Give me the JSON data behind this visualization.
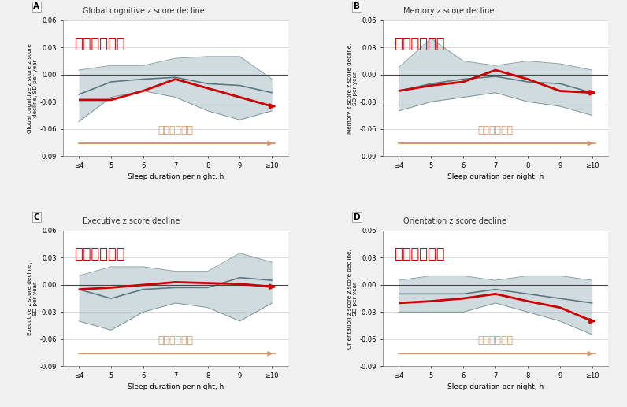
{
  "x_labels": [
    "≤4",
    "5",
    "6",
    "7",
    "8",
    "9",
    "≥10"
  ],
  "x_vals": [
    0,
    1,
    2,
    3,
    4,
    5,
    6
  ],
  "panels": [
    {
      "label": "A",
      "title": "Global cognitive z score decline",
      "ylabel": "Global cognitive z score z score\ndecline, SD per year",
      "chinese_label": "认知功能评分",
      "line_y": [
        -0.022,
        -0.008,
        -0.005,
        -0.003,
        -0.01,
        -0.012,
        -0.02
      ],
      "ci_upper": [
        0.005,
        0.01,
        0.01,
        0.018,
        0.02,
        0.02,
        -0.005
      ],
      "ci_lower": [
        -0.052,
        -0.025,
        -0.018,
        -0.025,
        -0.04,
        -0.05,
        -0.04
      ],
      "red_y": [
        -0.028,
        -0.028,
        -0.018,
        -0.005,
        -0.015,
        -0.025,
        -0.035
      ]
    },
    {
      "label": "B",
      "title": "Memory z score decline",
      "ylabel": "Memory z score z score decline,\nSD per year",
      "chinese_label": "记忆功能评分",
      "line_y": [
        -0.018,
        -0.01,
        -0.005,
        -0.002,
        -0.008,
        -0.01,
        -0.02
      ],
      "ci_upper": [
        0.008,
        0.04,
        0.015,
        0.01,
        0.015,
        0.012,
        0.005
      ],
      "ci_lower": [
        -0.04,
        -0.03,
        -0.025,
        -0.02,
        -0.03,
        -0.035,
        -0.045
      ],
      "red_y": [
        -0.018,
        -0.012,
        -0.008,
        0.005,
        -0.005,
        -0.018,
        -0.02
      ]
    },
    {
      "label": "C",
      "title": "Executive z score decline",
      "ylabel": "Executive z score decline,\nSD per year",
      "chinese_label": "执行功能评分",
      "line_y": [
        -0.005,
        -0.015,
        -0.005,
        -0.003,
        -0.003,
        0.008,
        0.005
      ],
      "ci_upper": [
        0.01,
        0.02,
        0.02,
        0.015,
        0.015,
        0.035,
        0.025
      ],
      "ci_lower": [
        -0.04,
        -0.05,
        -0.03,
        -0.02,
        -0.025,
        -0.04,
        -0.02
      ],
      "red_y": [
        -0.005,
        -0.003,
        0.0,
        0.003,
        0.002,
        0.001,
        -0.002
      ]
    },
    {
      "label": "D",
      "title": "Orientation z score decline",
      "ylabel": "Orientation z score z score decline,\nSD per year",
      "chinese_label": "定向功能评分",
      "line_y": [
        -0.01,
        -0.01,
        -0.01,
        -0.005,
        -0.01,
        -0.015,
        -0.02
      ],
      "ci_upper": [
        0.005,
        0.01,
        0.01,
        0.005,
        0.01,
        0.01,
        0.005
      ],
      "ci_lower": [
        -0.03,
        -0.03,
        -0.03,
        -0.02,
        -0.03,
        -0.04,
        -0.055
      ],
      "red_y": [
        -0.02,
        -0.018,
        -0.015,
        -0.01,
        -0.018,
        -0.025,
        -0.04
      ]
    }
  ],
  "ylim": [
    -0.09,
    0.06
  ],
  "yticks": [
    -0.09,
    -0.06,
    -0.03,
    0.0,
    0.03,
    0.06
  ],
  "bg_color": "#f0f0f0",
  "panel_bg": "#ffffff",
  "ci_color": "#aabfc5",
  "line_color": "#5a7a80",
  "red_color": "#cc0000",
  "arrow_color": "#d4956a",
  "chinese_color": "#cc0000",
  "chinese_fontsize": 13,
  "title_fontsize": 7.0,
  "axis_fontsize": 6.5,
  "tick_fontsize": 6.0
}
